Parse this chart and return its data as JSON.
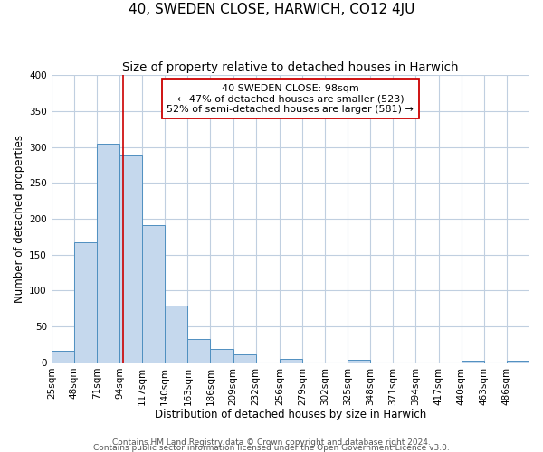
{
  "title": "40, SWEDEN CLOSE, HARWICH, CO12 4JU",
  "subtitle": "Size of property relative to detached houses in Harwich",
  "xlabel": "Distribution of detached houses by size in Harwich",
  "ylabel": "Number of detached properties",
  "footer_lines": [
    "Contains HM Land Registry data © Crown copyright and database right 2024.",
    "Contains public sector information licensed under the Open Government Licence v3.0."
  ],
  "bin_labels": [
    "25sqm",
    "48sqm",
    "71sqm",
    "94sqm",
    "117sqm",
    "140sqm",
    "163sqm",
    "186sqm",
    "209sqm",
    "232sqm",
    "256sqm",
    "279sqm",
    "302sqm",
    "325sqm",
    "348sqm",
    "371sqm",
    "394sqm",
    "417sqm",
    "440sqm",
    "463sqm",
    "486sqm"
  ],
  "bin_edges": [
    25,
    48,
    71,
    94,
    117,
    140,
    163,
    186,
    209,
    232,
    256,
    279,
    302,
    325,
    348,
    371,
    394,
    417,
    440,
    463,
    486
  ],
  "bar_values": [
    16,
    167,
    305,
    288,
    191,
    79,
    32,
    19,
    11,
    0,
    5,
    0,
    0,
    3,
    0,
    0,
    0,
    0,
    2,
    0,
    2
  ],
  "bar_color": "#c5d8ed",
  "bar_edge_color": "#4f8fc0",
  "property_value": 98,
  "vline_color": "#cc0000",
  "annotation_box_edge_color": "#cc0000",
  "annotation_line1": "40 SWEDEN CLOSE: 98sqm",
  "annotation_line2": "← 47% of detached houses are smaller (523)",
  "annotation_line3": "52% of semi-detached houses are larger (581) →",
  "ylim": [
    0,
    400
  ],
  "yticks": [
    0,
    50,
    100,
    150,
    200,
    250,
    300,
    350,
    400
  ],
  "background_color": "#ffffff",
  "grid_color": "#c0cfe0",
  "title_fontsize": 11,
  "subtitle_fontsize": 9.5,
  "axis_label_fontsize": 8.5,
  "tick_fontsize": 7.5,
  "annotation_fontsize": 8,
  "footer_fontsize": 6.5
}
